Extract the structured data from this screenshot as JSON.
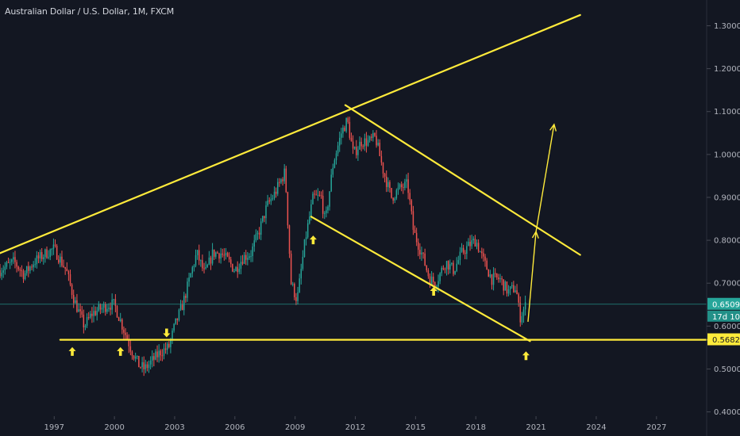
{
  "header": {
    "title": "Australian Dollar / U.S. Dollar, 1M, FXCM"
  },
  "colors": {
    "background": "#131722",
    "up": "#26a69a",
    "down": "#ef5350",
    "drawing": "#ffeb3b",
    "price_tag": "#26a69a",
    "support_tag": "#ffeb3b",
    "current_line": "#26a69a"
  },
  "chart_data": {
    "type": "candlestick",
    "title": "Australian Dollar / U.S. Dollar, 1M, FXCM",
    "symbol": "AUDUSD",
    "timeframe": "1M",
    "x_ticks": [
      "1997",
      "2000",
      "2003",
      "2006",
      "2009",
      "2012",
      "2015",
      "2018",
      "2021",
      "2024",
      "2027"
    ],
    "x_tick_years": [
      1997,
      2000,
      2003,
      2006,
      2009,
      2012,
      2015,
      2018,
      2021,
      2024,
      2027
    ],
    "y_ticks": [
      "1.30000",
      "1.20000",
      "1.10000",
      "1.00000",
      "0.90000",
      "0.80000",
      "0.70000",
      "0.60000",
      "0.50000",
      "0.40000"
    ],
    "y_tick_values": [
      1.3,
      1.2,
      1.1,
      1.0,
      0.9,
      0.8,
      0.7,
      0.6,
      0.5,
      0.4
    ],
    "xlim": [
      1994.3,
      2029.5
    ],
    "ylim": [
      0.39,
      1.36
    ],
    "price_path": [
      [
        1994.3,
        0.73
      ],
      [
        1995.0,
        0.75
      ],
      [
        1995.5,
        0.72
      ],
      [
        1996.0,
        0.75
      ],
      [
        1996.6,
        0.77
      ],
      [
        1997.0,
        0.78
      ],
      [
        1997.6,
        0.73
      ],
      [
        1998.0,
        0.66
      ],
      [
        1998.5,
        0.6
      ],
      [
        1998.9,
        0.63
      ],
      [
        1999.3,
        0.64
      ],
      [
        1999.7,
        0.65
      ],
      [
        2000.0,
        0.65
      ],
      [
        2000.4,
        0.6
      ],
      [
        2000.8,
        0.55
      ],
      [
        2001.2,
        0.51
      ],
      [
        2001.5,
        0.5
      ],
      [
        2001.9,
        0.52
      ],
      [
        2002.3,
        0.54
      ],
      [
        2002.7,
        0.55
      ],
      [
        2003.0,
        0.6
      ],
      [
        2003.4,
        0.65
      ],
      [
        2003.8,
        0.72
      ],
      [
        2004.1,
        0.77
      ],
      [
        2004.5,
        0.72
      ],
      [
        2004.9,
        0.77
      ],
      [
        2005.3,
        0.77
      ],
      [
        2005.7,
        0.75
      ],
      [
        2006.0,
        0.73
      ],
      [
        2006.4,
        0.76
      ],
      [
        2006.8,
        0.77
      ],
      [
        2007.2,
        0.82
      ],
      [
        2007.6,
        0.88
      ],
      [
        2008.0,
        0.91
      ],
      [
        2008.5,
        0.96
      ],
      [
        2008.8,
        0.7
      ],
      [
        2009.1,
        0.66
      ],
      [
        2009.5,
        0.8
      ],
      [
        2009.9,
        0.9
      ],
      [
        2010.3,
        0.9
      ],
      [
        2010.5,
        0.84
      ],
      [
        2010.9,
        0.98
      ],
      [
        2011.3,
        1.05
      ],
      [
        2011.6,
        1.08
      ],
      [
        2011.9,
        1.0
      ],
      [
        2012.3,
        1.03
      ],
      [
        2012.7,
        1.03
      ],
      [
        2013.0,
        1.04
      ],
      [
        2013.4,
        0.96
      ],
      [
        2013.8,
        0.9
      ],
      [
        2014.2,
        0.92
      ],
      [
        2014.6,
        0.93
      ],
      [
        2014.9,
        0.82
      ],
      [
        2015.3,
        0.77
      ],
      [
        2015.7,
        0.71
      ],
      [
        2016.0,
        0.7
      ],
      [
        2016.5,
        0.75
      ],
      [
        2016.9,
        0.73
      ],
      [
        2017.3,
        0.77
      ],
      [
        2017.7,
        0.79
      ],
      [
        2018.0,
        0.8
      ],
      [
        2018.4,
        0.75
      ],
      [
        2018.8,
        0.71
      ],
      [
        2019.2,
        0.71
      ],
      [
        2019.6,
        0.68
      ],
      [
        2020.0,
        0.69
      ],
      [
        2020.2,
        0.62
      ],
      [
        2020.5,
        0.65
      ]
    ],
    "current_price": 0.65096,
    "current_price_label": "0.65096",
    "countdown_label": "17d 10h",
    "support_price": 0.56826,
    "support_price_label": "0.56826",
    "annotations": {
      "upper_trendline": [
        [
          1994.3,
          0.77
        ],
        [
          2023.2,
          1.325
        ]
      ],
      "descending_upper": [
        [
          2011.5,
          1.115
        ],
        [
          2023.2,
          0.766
        ]
      ],
      "channel_lower": [
        [
          2009.8,
          0.855
        ],
        [
          2020.7,
          0.565
        ]
      ],
      "support_line": [
        [
          1997.3,
          0.568
        ],
        [
          2029.5,
          0.568
        ]
      ],
      "projection_arrows": [
        [
          [
            2020.6,
            0.61
          ],
          [
            2021.0,
            0.82
          ]
        ],
        [
          [
            2021.0,
            0.82
          ],
          [
            2021.9,
            1.07
          ]
        ]
      ],
      "up_markers": [
        [
          1997.9,
          0.54
        ],
        [
          2000.3,
          0.54
        ],
        [
          2009.9,
          0.8
        ],
        [
          2015.9,
          0.68
        ],
        [
          2020.5,
          0.53
        ]
      ],
      "down_markers": [
        [
          2002.6,
          0.585
        ]
      ]
    }
  }
}
